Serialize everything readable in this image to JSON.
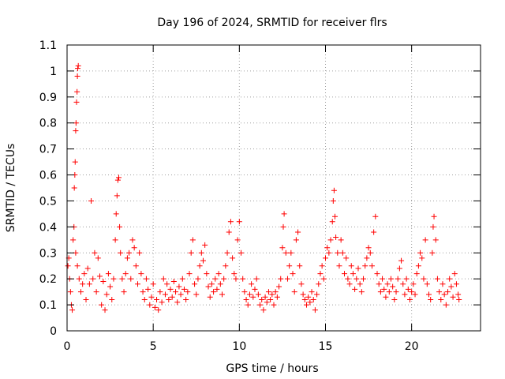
{
  "chart_data": {
    "type": "scatter",
    "title": "Day 196 of 2024, SRMTID for receiver flrs",
    "xlabel": "GPS time / hours",
    "ylabel": "SRMTID / TECUs",
    "xlim": [
      0,
      24
    ],
    "ylim": [
      0,
      1.1
    ],
    "xticks": [
      0,
      5,
      10,
      15,
      20
    ],
    "xtick_labels": [
      "0",
      "5",
      "10",
      "15",
      "20"
    ],
    "yticks": [
      0,
      0.1,
      0.2,
      0.3,
      0.4,
      0.5,
      0.6,
      0.7,
      0.8,
      0.9,
      1,
      1.1
    ],
    "ytick_labels": [
      "0",
      "0.1",
      "0.2",
      "0.3",
      "0.4",
      "0.5",
      "0.6",
      "0.7",
      "0.8",
      "0.9",
      "1",
      "1.1"
    ],
    "grid": true,
    "marker": "plus",
    "color": "#ff0000",
    "series": [
      {
        "name": "SRMTID",
        "points": [
          [
            0.05,
            0.25
          ],
          [
            0.1,
            0.28
          ],
          [
            0.15,
            0.2
          ],
          [
            0.2,
            0.15
          ],
          [
            0.25,
            0.1
          ],
          [
            0.3,
            0.08
          ],
          [
            0.35,
            0.35
          ],
          [
            0.4,
            0.4
          ],
          [
            0.42,
            0.55
          ],
          [
            0.45,
            0.6
          ],
          [
            0.47,
            0.65
          ],
          [
            0.5,
            0.77
          ],
          [
            0.52,
            0.8
          ],
          [
            0.55,
            0.88
          ],
          [
            0.58,
            0.92
          ],
          [
            0.6,
            0.98
          ],
          [
            0.62,
            1.01
          ],
          [
            0.65,
            1.02
          ],
          [
            0.5,
            0.3
          ],
          [
            0.6,
            0.25
          ],
          [
            0.7,
            0.2
          ],
          [
            0.8,
            0.15
          ],
          [
            0.9,
            0.18
          ],
          [
            1.0,
            0.22
          ],
          [
            1.1,
            0.12
          ],
          [
            1.2,
            0.24
          ],
          [
            1.3,
            0.18
          ],
          [
            1.4,
            0.5
          ],
          [
            1.5,
            0.2
          ],
          [
            1.6,
            0.3
          ],
          [
            1.7,
            0.15
          ],
          [
            1.8,
            0.28
          ],
          [
            1.9,
            0.21
          ],
          [
            2.0,
            0.1
          ],
          [
            2.1,
            0.19
          ],
          [
            2.2,
            0.08
          ],
          [
            2.3,
            0.14
          ],
          [
            2.4,
            0.22
          ],
          [
            2.5,
            0.17
          ],
          [
            2.6,
            0.12
          ],
          [
            2.7,
            0.2
          ],
          [
            2.8,
            0.35
          ],
          [
            2.85,
            0.45
          ],
          [
            2.9,
            0.52
          ],
          [
            2.95,
            0.58
          ],
          [
            3.0,
            0.59
          ],
          [
            3.05,
            0.4
          ],
          [
            3.1,
            0.3
          ],
          [
            3.2,
            0.2
          ],
          [
            3.3,
            0.15
          ],
          [
            3.4,
            0.22
          ],
          [
            3.5,
            0.28
          ],
          [
            3.6,
            0.3
          ],
          [
            3.7,
            0.2
          ],
          [
            3.8,
            0.35
          ],
          [
            3.9,
            0.32
          ],
          [
            4.0,
            0.25
          ],
          [
            4.1,
            0.18
          ],
          [
            4.2,
            0.3
          ],
          [
            4.3,
            0.22
          ],
          [
            4.4,
            0.15
          ],
          [
            4.5,
            0.12
          ],
          [
            4.6,
            0.2
          ],
          [
            4.7,
            0.16
          ],
          [
            4.8,
            0.1
          ],
          [
            4.9,
            0.13
          ],
          [
            5.0,
            0.18
          ],
          [
            5.1,
            0.09
          ],
          [
            5.2,
            0.12
          ],
          [
            5.3,
            0.08
          ],
          [
            5.4,
            0.15
          ],
          [
            5.5,
            0.11
          ],
          [
            5.6,
            0.2
          ],
          [
            5.7,
            0.14
          ],
          [
            5.8,
            0.18
          ],
          [
            5.9,
            0.12
          ],
          [
            6.0,
            0.16
          ],
          [
            6.1,
            0.13
          ],
          [
            6.2,
            0.19
          ],
          [
            6.3,
            0.15
          ],
          [
            6.4,
            0.11
          ],
          [
            6.5,
            0.17
          ],
          [
            6.6,
            0.14
          ],
          [
            6.7,
            0.2
          ],
          [
            6.8,
            0.16
          ],
          [
            6.9,
            0.12
          ],
          [
            7.0,
            0.15
          ],
          [
            7.1,
            0.22
          ],
          [
            7.2,
            0.3
          ],
          [
            7.3,
            0.35
          ],
          [
            7.4,
            0.18
          ],
          [
            7.5,
            0.14
          ],
          [
            7.6,
            0.2
          ],
          [
            7.7,
            0.25
          ],
          [
            7.8,
            0.3
          ],
          [
            7.9,
            0.27
          ],
          [
            8.0,
            0.33
          ],
          [
            8.1,
            0.22
          ],
          [
            8.2,
            0.17
          ],
          [
            8.3,
            0.13
          ],
          [
            8.4,
            0.18
          ],
          [
            8.5,
            0.15
          ],
          [
            8.6,
            0.2
          ],
          [
            8.7,
            0.16
          ],
          [
            8.8,
            0.22
          ],
          [
            8.9,
            0.18
          ],
          [
            9.0,
            0.14
          ],
          [
            9.1,
            0.2
          ],
          [
            9.2,
            0.25
          ],
          [
            9.3,
            0.3
          ],
          [
            9.4,
            0.38
          ],
          [
            9.5,
            0.42
          ],
          [
            9.6,
            0.28
          ],
          [
            9.7,
            0.22
          ],
          [
            9.8,
            0.2
          ],
          [
            9.9,
            0.35
          ],
          [
            10.0,
            0.42
          ],
          [
            10.1,
            0.3
          ],
          [
            10.2,
            0.2
          ],
          [
            10.3,
            0.15
          ],
          [
            10.4,
            0.12
          ],
          [
            10.5,
            0.1
          ],
          [
            10.6,
            0.14
          ],
          [
            10.7,
            0.18
          ],
          [
            10.8,
            0.13
          ],
          [
            10.9,
            0.16
          ],
          [
            11.0,
            0.2
          ],
          [
            11.1,
            0.14
          ],
          [
            11.2,
            0.1
          ],
          [
            11.3,
            0.12
          ],
          [
            11.4,
            0.08
          ],
          [
            11.5,
            0.13
          ],
          [
            11.6,
            0.11
          ],
          [
            11.7,
            0.15
          ],
          [
            11.8,
            0.12
          ],
          [
            11.9,
            0.14
          ],
          [
            12.0,
            0.1
          ],
          [
            12.1,
            0.15
          ],
          [
            12.2,
            0.13
          ],
          [
            12.3,
            0.17
          ],
          [
            12.4,
            0.2
          ],
          [
            12.5,
            0.32
          ],
          [
            12.55,
            0.4
          ],
          [
            12.6,
            0.45
          ],
          [
            12.7,
            0.3
          ],
          [
            12.8,
            0.2
          ],
          [
            12.9,
            0.25
          ],
          [
            13.0,
            0.3
          ],
          [
            13.1,
            0.22
          ],
          [
            13.2,
            0.15
          ],
          [
            13.3,
            0.35
          ],
          [
            13.4,
            0.38
          ],
          [
            13.5,
            0.25
          ],
          [
            13.6,
            0.18
          ],
          [
            13.7,
            0.14
          ],
          [
            13.8,
            0.12
          ],
          [
            13.9,
            0.1
          ],
          [
            14.0,
            0.13
          ],
          [
            14.1,
            0.11
          ],
          [
            14.2,
            0.15
          ],
          [
            14.3,
            0.12
          ],
          [
            14.4,
            0.08
          ],
          [
            14.5,
            0.14
          ],
          [
            14.6,
            0.18
          ],
          [
            14.7,
            0.22
          ],
          [
            14.8,
            0.25
          ],
          [
            14.9,
            0.2
          ],
          [
            15.0,
            0.28
          ],
          [
            15.1,
            0.32
          ],
          [
            15.2,
            0.3
          ],
          [
            15.3,
            0.35
          ],
          [
            15.4,
            0.42
          ],
          [
            15.45,
            0.5
          ],
          [
            15.5,
            0.54
          ],
          [
            15.55,
            0.44
          ],
          [
            15.6,
            0.36
          ],
          [
            15.7,
            0.3
          ],
          [
            15.8,
            0.25
          ],
          [
            15.9,
            0.35
          ],
          [
            16.0,
            0.3
          ],
          [
            16.1,
            0.22
          ],
          [
            16.2,
            0.28
          ],
          [
            16.3,
            0.2
          ],
          [
            16.4,
            0.18
          ],
          [
            16.5,
            0.25
          ],
          [
            16.6,
            0.22
          ],
          [
            16.7,
            0.16
          ],
          [
            16.8,
            0.2
          ],
          [
            16.9,
            0.24
          ],
          [
            17.0,
            0.18
          ],
          [
            17.1,
            0.15
          ],
          [
            17.2,
            0.2
          ],
          [
            17.3,
            0.25
          ],
          [
            17.4,
            0.28
          ],
          [
            17.5,
            0.32
          ],
          [
            17.6,
            0.3
          ],
          [
            17.7,
            0.25
          ],
          [
            17.8,
            0.38
          ],
          [
            17.9,
            0.44
          ],
          [
            18.0,
            0.22
          ],
          [
            18.1,
            0.18
          ],
          [
            18.2,
            0.15
          ],
          [
            18.3,
            0.2
          ],
          [
            18.4,
            0.16
          ],
          [
            18.5,
            0.13
          ],
          [
            18.6,
            0.18
          ],
          [
            18.7,
            0.15
          ],
          [
            18.8,
            0.2
          ],
          [
            18.9,
            0.17
          ],
          [
            19.0,
            0.12
          ],
          [
            19.1,
            0.15
          ],
          [
            19.2,
            0.2
          ],
          [
            19.3,
            0.24
          ],
          [
            19.4,
            0.27
          ],
          [
            19.5,
            0.18
          ],
          [
            19.6,
            0.14
          ],
          [
            19.7,
            0.2
          ],
          [
            19.8,
            0.16
          ],
          [
            19.9,
            0.12
          ],
          [
            20.0,
            0.15
          ],
          [
            20.1,
            0.18
          ],
          [
            20.2,
            0.14
          ],
          [
            20.3,
            0.22
          ],
          [
            20.4,
            0.25
          ],
          [
            20.5,
            0.3
          ],
          [
            20.6,
            0.28
          ],
          [
            20.7,
            0.2
          ],
          [
            20.8,
            0.35
          ],
          [
            20.9,
            0.18
          ],
          [
            21.0,
            0.14
          ],
          [
            21.1,
            0.12
          ],
          [
            21.2,
            0.3
          ],
          [
            21.25,
            0.4
          ],
          [
            21.3,
            0.44
          ],
          [
            21.4,
            0.35
          ],
          [
            21.5,
            0.2
          ],
          [
            21.6,
            0.15
          ],
          [
            21.7,
            0.12
          ],
          [
            21.8,
            0.18
          ],
          [
            21.9,
            0.14
          ],
          [
            22.0,
            0.1
          ],
          [
            22.1,
            0.15
          ],
          [
            22.2,
            0.2
          ],
          [
            22.3,
            0.17
          ],
          [
            22.4,
            0.13
          ],
          [
            22.5,
            0.22
          ],
          [
            22.6,
            0.18
          ],
          [
            22.7,
            0.14
          ],
          [
            22.75,
            0.12
          ]
        ]
      }
    ]
  }
}
